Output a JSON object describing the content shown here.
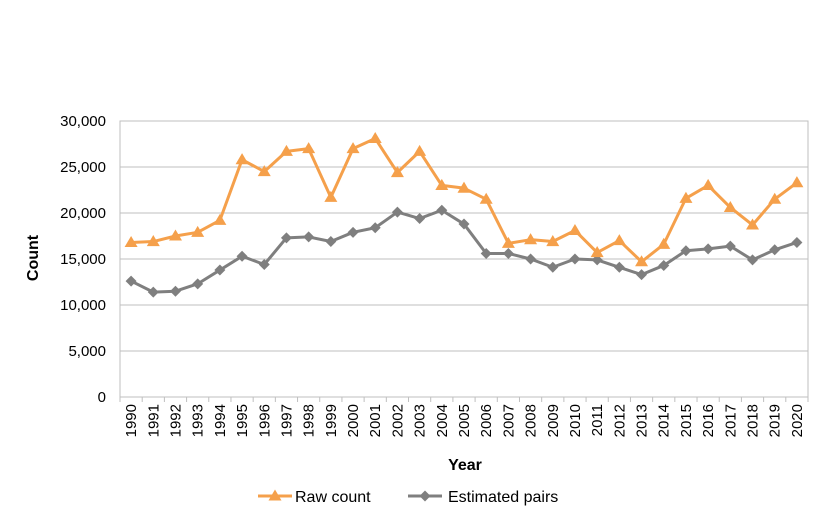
{
  "chart_data": {
    "type": "line",
    "title": "",
    "xlabel": "Year",
    "ylabel": "Count",
    "ylim": [
      0,
      30000
    ],
    "yticks": [
      0,
      5000,
      10000,
      15000,
      20000,
      25000,
      30000
    ],
    "ytick_labels": [
      "0",
      "5,000",
      "10,000",
      "15,000",
      "20,000",
      "25,000",
      "30,000"
    ],
    "grid": "horizontal",
    "legend_position": "bottom",
    "x": [
      "1990",
      "1991",
      "1992",
      "1993",
      "1994",
      "1995",
      "1996",
      "1997",
      "1998",
      "1999",
      "2000",
      "2001",
      "2002",
      "2003",
      "2004",
      "2005",
      "2006",
      "2007",
      "2008",
      "2009",
      "2010",
      "2011",
      "2012",
      "2013",
      "2014",
      "2015",
      "2016",
      "2017",
      "2018",
      "2019",
      "2020"
    ],
    "series": [
      {
        "name": "Raw count",
        "color": "#f5a04b",
        "marker": "triangle",
        "values": [
          16800,
          16900,
          17500,
          17900,
          19200,
          25800,
          24500,
          26700,
          27000,
          21700,
          27000,
          28100,
          24400,
          26700,
          23000,
          22700,
          21500,
          16700,
          17100,
          16900,
          18100,
          15700,
          17000,
          14700,
          16600,
          21600,
          23000,
          20600,
          18700,
          21500,
          23300
        ]
      },
      {
        "name": "Estimated pairs",
        "color": "#7f7f7f",
        "marker": "diamond",
        "values": [
          12600,
          11400,
          11500,
          12300,
          13800,
          15300,
          14400,
          17300,
          17400,
          16900,
          17900,
          18400,
          20100,
          19400,
          20300,
          18800,
          15600,
          15600,
          15000,
          14100,
          15000,
          14900,
          14100,
          13300,
          14300,
          15900,
          16100,
          16400,
          14900,
          16000,
          16800
        ]
      }
    ]
  }
}
